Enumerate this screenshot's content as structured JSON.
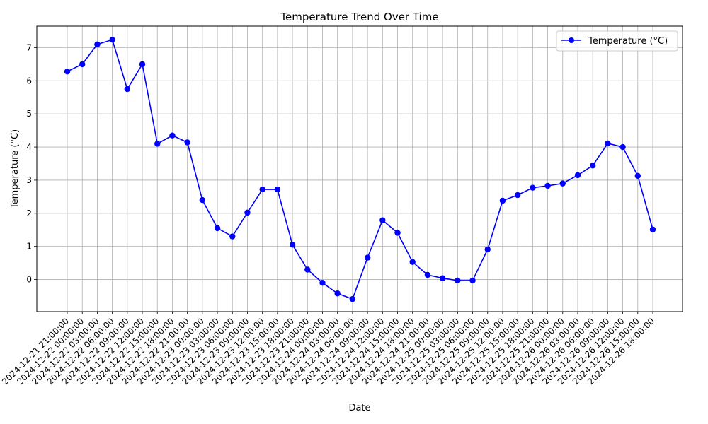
{
  "chart_data": {
    "type": "line",
    "title": "Temperature Trend Over Time",
    "xlabel": "Date",
    "ylabel": "Temperature (°C)",
    "categories": [
      "2024-12-21 21:00:00",
      "2024-12-22 00:00:00",
      "2024-12-22 03:00:00",
      "2024-12-22 06:00:00",
      "2024-12-22 09:00:00",
      "2024-12-22 12:00:00",
      "2024-12-22 15:00:00",
      "2024-12-22 18:00:00",
      "2024-12-22 21:00:00",
      "2024-12-23 00:00:00",
      "2024-12-23 03:00:00",
      "2024-12-23 06:00:00",
      "2024-12-23 09:00:00",
      "2024-12-23 12:00:00",
      "2024-12-23 15:00:00",
      "2024-12-23 18:00:00",
      "2024-12-23 21:00:00",
      "2024-12-24 00:00:00",
      "2024-12-24 03:00:00",
      "2024-12-24 06:00:00",
      "2024-12-24 09:00:00",
      "2024-12-24 12:00:00",
      "2024-12-24 15:00:00",
      "2024-12-24 18:00:00",
      "2024-12-24 21:00:00",
      "2024-12-25 00:00:00",
      "2024-12-25 03:00:00",
      "2024-12-25 06:00:00",
      "2024-12-25 09:00:00",
      "2024-12-25 12:00:00",
      "2024-12-25 15:00:00",
      "2024-12-25 18:00:00",
      "2024-12-25 21:00:00",
      "2024-12-26 00:00:00",
      "2024-12-26 03:00:00",
      "2024-12-26 06:00:00",
      "2024-12-26 09:00:00",
      "2024-12-26 12:00:00",
      "2024-12-26 15:00:00",
      "2024-12-26 18:00:00"
    ],
    "series": [
      {
        "name": "Temperature (°C)",
        "color": "#0000ff",
        "marker": "circle",
        "values": [
          6.28,
          6.5,
          7.1,
          7.24,
          5.75,
          6.5,
          4.1,
          4.35,
          4.14,
          2.4,
          1.55,
          1.3,
          2.02,
          2.72,
          2.72,
          1.05,
          0.3,
          -0.1,
          -0.42,
          -0.59,
          0.66,
          1.79,
          1.41,
          0.53,
          0.14,
          0.04,
          -0.03,
          -0.03,
          0.91,
          2.38,
          2.55,
          2.77,
          2.83,
          2.9,
          3.15,
          3.44,
          4.11,
          4.0,
          3.13,
          1.51
        ]
      }
    ],
    "ylim": [
      -0.97,
      7.65
    ],
    "yticks": [
      0,
      1,
      2,
      3,
      4,
      5,
      6,
      7
    ],
    "grid": true,
    "legend_position": "top-right"
  }
}
